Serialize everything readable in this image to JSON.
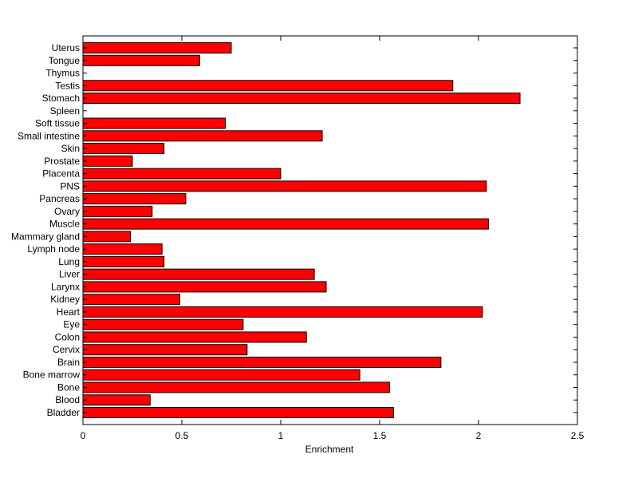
{
  "chart_data": {
    "type": "bar",
    "orientation": "horizontal",
    "title": "",
    "xlabel": "Enrichment",
    "ylabel": "",
    "xlim": [
      0,
      2.5
    ],
    "xticks": [
      "0",
      "0.5",
      "1",
      "1.5",
      "2",
      "2.5"
    ],
    "xtick_values": [
      0,
      0.5,
      1,
      1.5,
      2,
      2.5
    ],
    "grid": false,
    "bar_color": "#ff0000",
    "categories": [
      "Bladder",
      "Blood",
      "Bone",
      "Bone marrow",
      "Brain",
      "Cervix",
      "Colon",
      "Eye",
      "Heart",
      "Kidney",
      "Larynx",
      "Liver",
      "Lung",
      "Lymph node",
      "Mammary gland",
      "Muscle",
      "Ovary",
      "Pancreas",
      "PNS",
      "Placenta",
      "Prostate",
      "Skin",
      "Small intestine",
      "Soft tissue",
      "Spleen",
      "Stomach",
      "Testis",
      "Thymus",
      "Tongue",
      "Uterus"
    ],
    "values": [
      1.57,
      0.34,
      1.55,
      1.4,
      1.81,
      0.83,
      1.13,
      0.81,
      2.02,
      0.49,
      1.23,
      1.17,
      0.41,
      0.4,
      0.24,
      2.05,
      0.35,
      0.52,
      2.04,
      1.0,
      0.25,
      0.41,
      1.21,
      0.72,
      0,
      2.21,
      1.87,
      0,
      0.59,
      0.75
    ]
  }
}
